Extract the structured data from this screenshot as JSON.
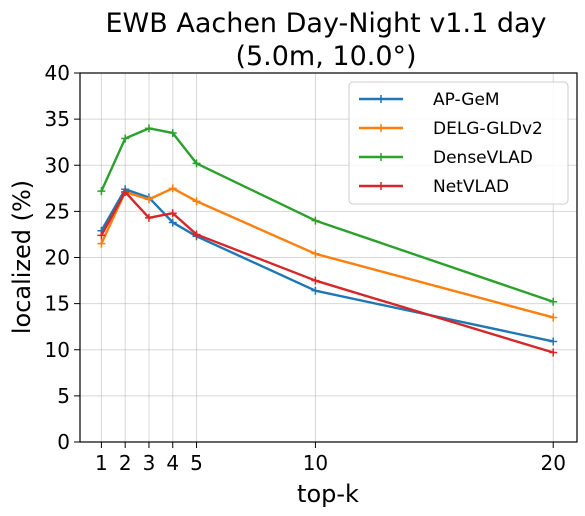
{
  "chart_data": {
    "type": "line",
    "title": [
      "EWB Aachen Day-Night v1.1 day",
      "(5.0m, 10.0°)"
    ],
    "xlabel": "top-k",
    "ylabel": "localized (%)",
    "x": [
      1,
      2,
      3,
      4,
      5,
      10,
      20
    ],
    "xticks": [
      1,
      2,
      3,
      4,
      5,
      10,
      20
    ],
    "yticks": [
      0,
      5,
      10,
      15,
      20,
      25,
      30,
      35,
      40
    ],
    "xlim": [
      0.1,
      21
    ],
    "ylim": [
      0,
      40
    ],
    "grid": true,
    "legend_position": "top-right",
    "marker": "+",
    "series": [
      {
        "name": "AP-GeM",
        "color": "#1f77b4",
        "values": [
          22.9,
          27.4,
          26.5,
          23.8,
          22.3,
          16.4,
          10.9
        ]
      },
      {
        "name": "DELG-GLDv2",
        "color": "#ff7f0e",
        "values": [
          21.5,
          27.1,
          26.3,
          27.5,
          26.1,
          20.4,
          13.5
        ]
      },
      {
        "name": "DenseVLAD",
        "color": "#2ca02c",
        "values": [
          27.2,
          32.9,
          34.0,
          33.5,
          30.2,
          24.0,
          15.2
        ]
      },
      {
        "name": "NetVLAD",
        "color": "#d62728",
        "values": [
          22.4,
          27.1,
          24.3,
          24.8,
          22.5,
          17.5,
          9.7
        ]
      }
    ]
  }
}
